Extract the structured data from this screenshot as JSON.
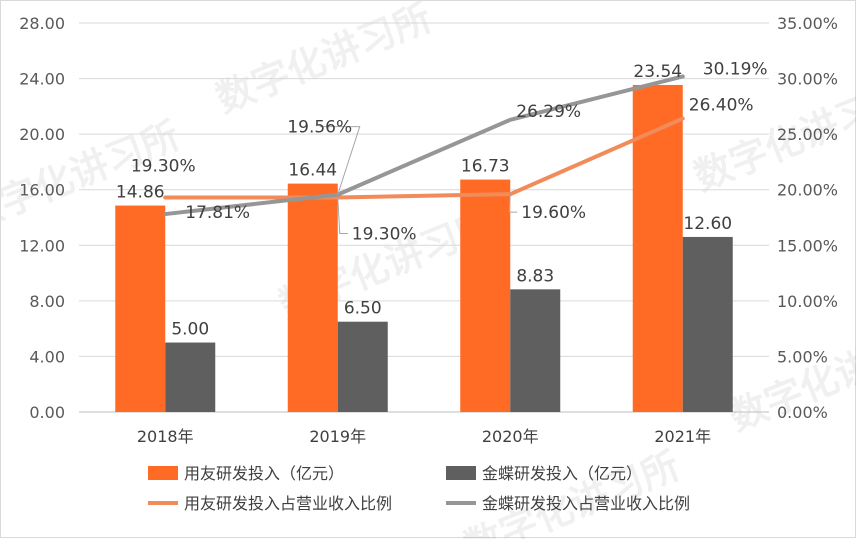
{
  "chart_data": {
    "type": "bar",
    "categories": [
      "2018年",
      "2019年",
      "2020年",
      "2021年"
    ],
    "series": [
      {
        "name": "用友研发投入（亿元）",
        "type": "bar",
        "axis": "left",
        "color": "#FF6B24",
        "values": [
          14.86,
          16.44,
          16.73,
          23.54
        ],
        "labels": [
          "14.86",
          "16.44",
          "16.73",
          "23.54"
        ]
      },
      {
        "name": "金蝶研发投入（亿元）",
        "type": "bar",
        "axis": "left",
        "color": "#5F5F5F",
        "values": [
          5.0,
          6.5,
          8.83,
          12.6
        ],
        "labels": [
          "5.00",
          "6.50",
          "8.83",
          "12.60"
        ]
      },
      {
        "name": "用友研发投入占营业收入比例",
        "type": "line",
        "axis": "right",
        "color": "#F28B5A",
        "values": [
          19.3,
          19.3,
          19.6,
          26.4
        ],
        "labels": [
          "19.30%",
          "19.30%",
          "19.60%",
          "26.40%"
        ]
      },
      {
        "name": "金蝶研发投入占营业收入比例",
        "type": "line",
        "axis": "right",
        "color": "#969696",
        "values": [
          17.81,
          19.56,
          26.29,
          30.19
        ],
        "labels": [
          "17.81%",
          "19.56%",
          "26.29%",
          "30.19%"
        ]
      }
    ],
    "y_left": {
      "min": 0,
      "max": 28,
      "ticks": [
        "0.00",
        "4.00",
        "8.00",
        "12.00",
        "16.00",
        "20.00",
        "24.00",
        "28.00"
      ]
    },
    "y_right": {
      "min": 0,
      "max": 35,
      "ticks": [
        "0.00%",
        "5.00%",
        "10.00%",
        "15.00%",
        "20.00%",
        "25.00%",
        "30.00%",
        "35.00%"
      ]
    },
    "grid": true,
    "legend_position": "bottom",
    "watermark": "数字化讲习所"
  }
}
